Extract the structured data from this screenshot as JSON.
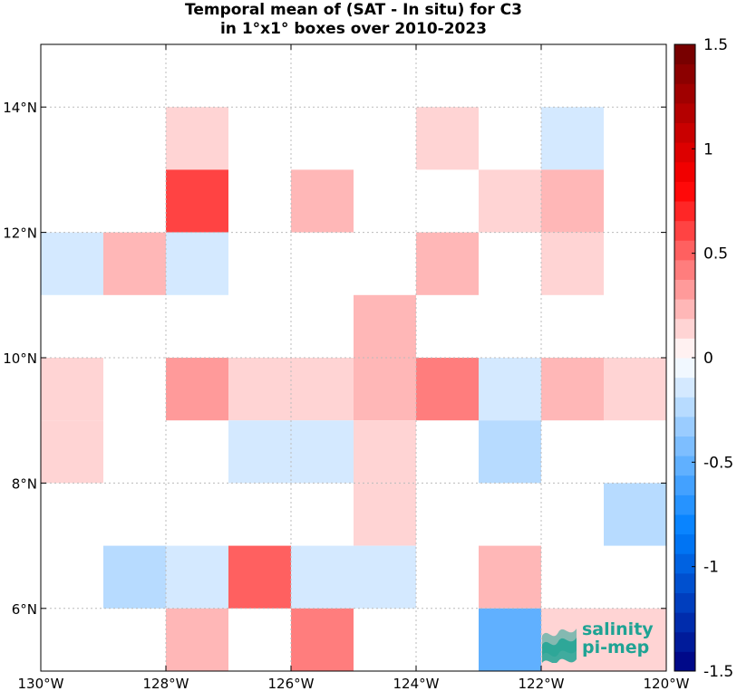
{
  "chart_data": {
    "type": "heatmap",
    "title": "Temporal mean of (SAT - In situ) for C3",
    "subtitle": "in 1°x1° boxes over 2010-2023",
    "x_range": [
      -130,
      -120
    ],
    "y_range": [
      5,
      15
    ],
    "x_ticks": [
      -130,
      -128,
      -126,
      -124,
      -122,
      -120
    ],
    "x_tick_labels": [
      "130°W",
      "128°W",
      "126°W",
      "124°W",
      "122°W",
      "120°W"
    ],
    "y_ticks": [
      6,
      8,
      10,
      12,
      14
    ],
    "y_tick_labels": [
      "6°N",
      "8°N",
      "10°N",
      "12°N",
      "14°N"
    ],
    "grid": true,
    "colorbar": {
      "range": [
        -1.5,
        1.5
      ],
      "levels": 32,
      "ticks": [
        1.5,
        1,
        0.5,
        0,
        -0.5,
        -1,
        -1.5
      ],
      "tick_labels": [
        "1.5",
        "1",
        "0.5",
        "0",
        "-0.5",
        "-1",
        "-1.5"
      ]
    },
    "cells": [
      {
        "lon": -128,
        "lat": 13,
        "value": 0.15
      },
      {
        "lon": -124,
        "lat": 13,
        "value": 0.15
      },
      {
        "lon": -122,
        "lat": 13,
        "value": -0.1
      },
      {
        "lon": -128,
        "lat": 12,
        "value": 0.65
      },
      {
        "lon": -126,
        "lat": 12,
        "value": 0.25
      },
      {
        "lon": -123,
        "lat": 12,
        "value": 0.15
      },
      {
        "lon": -122,
        "lat": 12,
        "value": 0.25
      },
      {
        "lon": -130,
        "lat": 11,
        "value": -0.1
      },
      {
        "lon": -129,
        "lat": 11,
        "value": 0.25
      },
      {
        "lon": -128,
        "lat": 11,
        "value": -0.1
      },
      {
        "lon": -124,
        "lat": 11,
        "value": 0.25
      },
      {
        "lon": -122,
        "lat": 11,
        "value": 0.15
      },
      {
        "lon": -125,
        "lat": 10,
        "value": 0.25
      },
      {
        "lon": -130,
        "lat": 9,
        "value": 0.15
      },
      {
        "lon": -128,
        "lat": 9,
        "value": 0.35
      },
      {
        "lon": -127,
        "lat": 9,
        "value": 0.15
      },
      {
        "lon": -126,
        "lat": 9,
        "value": 0.15
      },
      {
        "lon": -125,
        "lat": 9,
        "value": 0.25
      },
      {
        "lon": -124,
        "lat": 9,
        "value": 0.4
      },
      {
        "lon": -123,
        "lat": 9,
        "value": -0.1
      },
      {
        "lon": -122,
        "lat": 9,
        "value": 0.25
      },
      {
        "lon": -121,
        "lat": 9,
        "value": 0.15
      },
      {
        "lon": -130,
        "lat": 8,
        "value": 0.15
      },
      {
        "lon": -127,
        "lat": 8,
        "value": -0.1
      },
      {
        "lon": -126,
        "lat": 8,
        "value": -0.1
      },
      {
        "lon": -125,
        "lat": 8,
        "value": 0.15
      },
      {
        "lon": -123,
        "lat": 8,
        "value": -0.25
      },
      {
        "lon": -125,
        "lat": 7,
        "value": 0.15
      },
      {
        "lon": -121,
        "lat": 7,
        "value": -0.2
      },
      {
        "lon": -129,
        "lat": 6,
        "value": -0.2
      },
      {
        "lon": -128,
        "lat": 6,
        "value": -0.1
      },
      {
        "lon": -127,
        "lat": 6,
        "value": 0.55
      },
      {
        "lon": -126,
        "lat": 6,
        "value": -0.1
      },
      {
        "lon": -125,
        "lat": 6,
        "value": -0.1
      },
      {
        "lon": -123,
        "lat": 6,
        "value": 0.25
      },
      {
        "lon": -128,
        "lat": 5,
        "value": 0.25
      },
      {
        "lon": -126,
        "lat": 5,
        "value": 0.4
      },
      {
        "lon": -123,
        "lat": 5,
        "value": -0.55
      },
      {
        "lon": -122,
        "lat": 5,
        "value": 0.15
      },
      {
        "lon": -121,
        "lat": 5,
        "value": 0.15
      }
    ]
  },
  "logo": {
    "line1": "salinity",
    "line2": "pi-mep",
    "color": "#1fa394"
  }
}
